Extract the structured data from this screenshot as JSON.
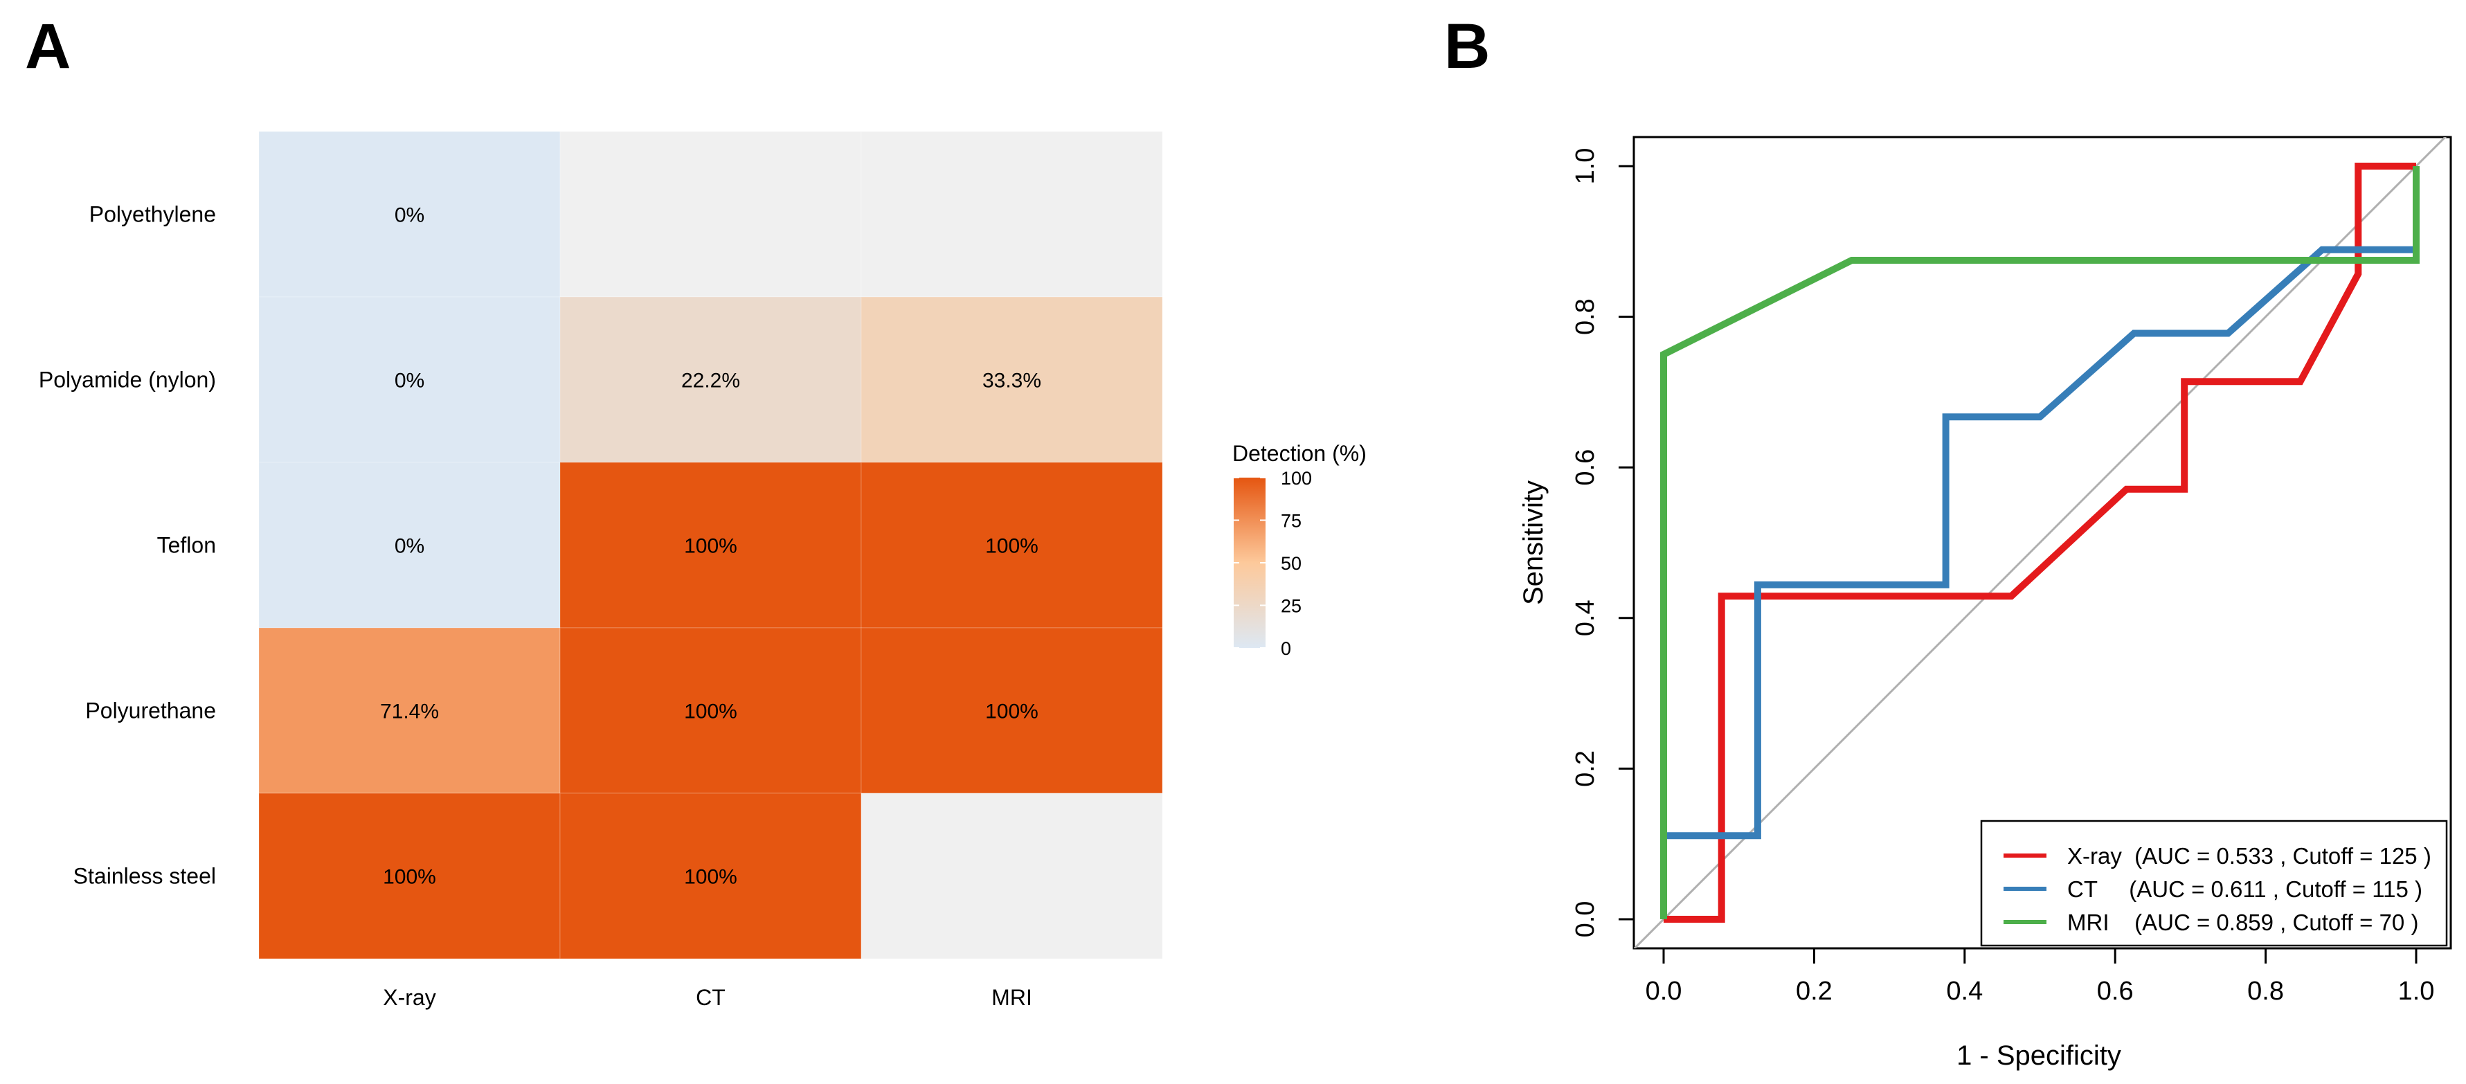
{
  "panels": {
    "a_label": "A",
    "b_label": "B"
  },
  "chart_data": [
    {
      "type": "heatmap",
      "rows": [
        "Polyethylene",
        "Polyamide (nylon)",
        "Teflon",
        "Polyurethane",
        "Stainless steel"
      ],
      "columns": [
        "X-ray",
        "CT",
        "MRI"
      ],
      "values": [
        [
          0,
          null,
          null
        ],
        [
          0,
          22.2,
          33.3
        ],
        [
          0,
          100,
          100
        ],
        [
          71.4,
          100,
          100
        ],
        [
          100,
          100,
          null
        ]
      ],
      "cell_labels": [
        [
          "0%",
          "",
          ""
        ],
        [
          "0%",
          "22.2%",
          "33.3%"
        ],
        [
          "0%",
          "100%",
          "100%"
        ],
        [
          "71.4%",
          "100%",
          "100%"
        ],
        [
          "100%",
          "100%",
          ""
        ]
      ],
      "na_color": "#f0f0f0",
      "color_scale": {
        "low": "#dde8f3",
        "mid": "#fdc99b",
        "high": "#e55611"
      },
      "legend": {
        "title": "Detection (%)",
        "ticks": [
          0,
          25,
          50,
          75,
          100
        ],
        "tick_labels": [
          "0",
          "25",
          "50",
          "75",
          "100"
        ],
        "position": "right"
      }
    },
    {
      "type": "line",
      "xlabel": "1 - Specificity",
      "ylabel": "Sensitivity",
      "xlim": [
        0,
        1
      ],
      "ylim": [
        0,
        1
      ],
      "x_ticks": [
        0,
        0.2,
        0.4,
        0.6,
        0.8,
        1
      ],
      "x_tick_labels": [
        "0.0",
        "0.2",
        "0.4",
        "0.6",
        "0.8",
        "1.0"
      ],
      "y_ticks": [
        0,
        0.2,
        0.4,
        0.6,
        0.8,
        1
      ],
      "y_tick_labels": [
        "0.0",
        "0.2",
        "0.4",
        "0.6",
        "0.8",
        "1.0"
      ],
      "reference_line": true,
      "grid": false,
      "legend_position": "bottom-right",
      "series": [
        {
          "name": "X-ray",
          "label": "X-ray  (AUC = 0.533 , Cutoff = 125 )",
          "color": "#e41a1c",
          "x": [
            0,
            0.077,
            0.077,
            0.462,
            0.615,
            0.692,
            0.692,
            0.846,
            0.923,
            0.923,
            1
          ],
          "y": [
            0,
            0,
            0.429,
            0.429,
            0.571,
            0.571,
            0.714,
            0.714,
            0.857,
            1,
            1
          ]
        },
        {
          "name": "CT",
          "label": "CT     (AUC = 0.611 , Cutoff = 115 )",
          "color": "#377eb8",
          "x": [
            0,
            0.125,
            0.125,
            0.375,
            0.375,
            0.5,
            0.625,
            0.75,
            0.875,
            1,
            1
          ],
          "y": [
            0.111,
            0.111,
            0.444,
            0.444,
            0.667,
            0.667,
            0.778,
            0.778,
            0.889,
            0.889,
            0.875
          ]
        },
        {
          "name": "MRI",
          "label": "MRI    (AUC = 0.859 , Cutoff = 70 )",
          "color": "#4daf4a",
          "x": [
            0,
            0,
            0.25,
            1,
            1
          ],
          "y": [
            0,
            0.75,
            0.875,
            0.875,
            1
          ]
        }
      ]
    }
  ]
}
